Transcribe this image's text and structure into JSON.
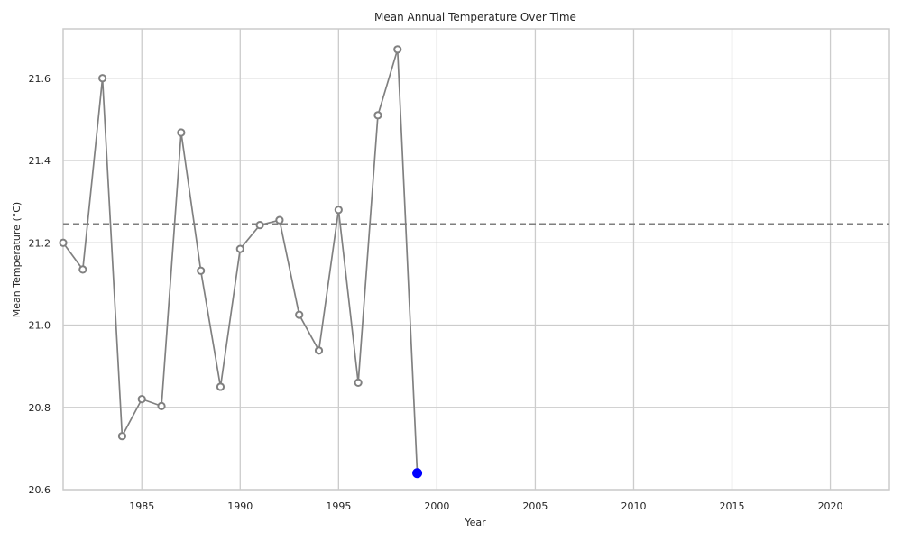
{
  "chart_data": {
    "type": "line",
    "title": "Mean Annual Temperature Over Time",
    "xlabel": "Year",
    "ylabel": "Mean Temperature (°C)",
    "xlim": [
      1981,
      2023
    ],
    "ylim": [
      20.6,
      21.72
    ],
    "xticks": [
      1985,
      1990,
      1995,
      2000,
      2005,
      2010,
      2015,
      2020
    ],
    "yticks": [
      20.6,
      20.8,
      21.0,
      21.2,
      21.4,
      21.6
    ],
    "grid": true,
    "legend": "none",
    "reference_line": {
      "style": "dashed",
      "value": 21.246
    },
    "highlight_point": {
      "x": 1999,
      "y": 20.64,
      "color": "#0000ff"
    },
    "line_color": "#808080",
    "series": [
      {
        "x": [
          1981,
          1982,
          1983,
          1984,
          1985,
          1986,
          1987,
          1988,
          1989,
          1990,
          1991,
          1992,
          1993,
          1994,
          1995,
          1996,
          1997,
          1998,
          1999
        ],
        "values": [
          21.2,
          21.135,
          21.6,
          20.73,
          20.82,
          20.803,
          21.468,
          21.132,
          20.85,
          21.185,
          21.243,
          21.255,
          21.025,
          20.938,
          21.28,
          20.86,
          21.51,
          21.67,
          20.64
        ]
      }
    ]
  }
}
